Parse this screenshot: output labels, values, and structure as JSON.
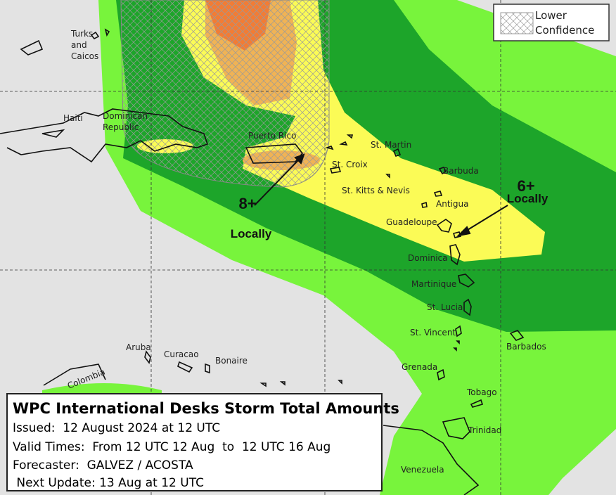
{
  "legend": {
    "lines": [
      "Lower",
      "Confidence"
    ]
  },
  "places": [
    {
      "lines": [
        "Turks",
        "and",
        "Caicos"
      ]
    },
    {
      "lines": [
        "Haiti"
      ]
    },
    {
      "lines": [
        "Dominican",
        "Republic"
      ]
    },
    {
      "lines": [
        "Puerto Rico"
      ]
    },
    {
      "lines": [
        "St. Martin"
      ]
    },
    {
      "lines": [
        "St. Croix"
      ]
    },
    {
      "lines": [
        "Barbuda"
      ]
    },
    {
      "lines": [
        "St. Kitts & Nevis"
      ]
    },
    {
      "lines": [
        "Antigua"
      ]
    },
    {
      "lines": [
        "Guadeloupe"
      ]
    },
    {
      "lines": [
        "Dominica"
      ]
    },
    {
      "lines": [
        "Martinique"
      ]
    },
    {
      "lines": [
        "St. Lucia"
      ]
    },
    {
      "lines": [
        "St. Vincent"
      ]
    },
    {
      "lines": [
        "Barbados"
      ]
    },
    {
      "lines": [
        "Grenada"
      ]
    },
    {
      "lines": [
        "Tobago"
      ]
    },
    {
      "lines": [
        "Trinidad"
      ]
    },
    {
      "lines": [
        "Venezuela"
      ]
    },
    {
      "lines": [
        "Aruba"
      ]
    },
    {
      "lines": [
        "Curacao"
      ]
    },
    {
      "lines": [
        "Bonaire"
      ]
    },
    {
      "lines": [
        "Colombia"
      ]
    }
  ],
  "annotations": [
    {
      "amount": "8+",
      "qualifier": "Locally"
    },
    {
      "amount": "6+",
      "qualifier": "Locally"
    }
  ],
  "info_box": {
    "title": "WPC International Desks Storm Total Amounts",
    "lines": [
      "Issued:  12 August 2024 at 12 UTC",
      "Valid Times:  From 12 UTC 12 Aug  to  12 UTC 16 Aug",
      "Forecaster:  GALVEZ / ACOSTA",
      " Next Update: 13 Aug at 12 UTC"
    ]
  }
}
